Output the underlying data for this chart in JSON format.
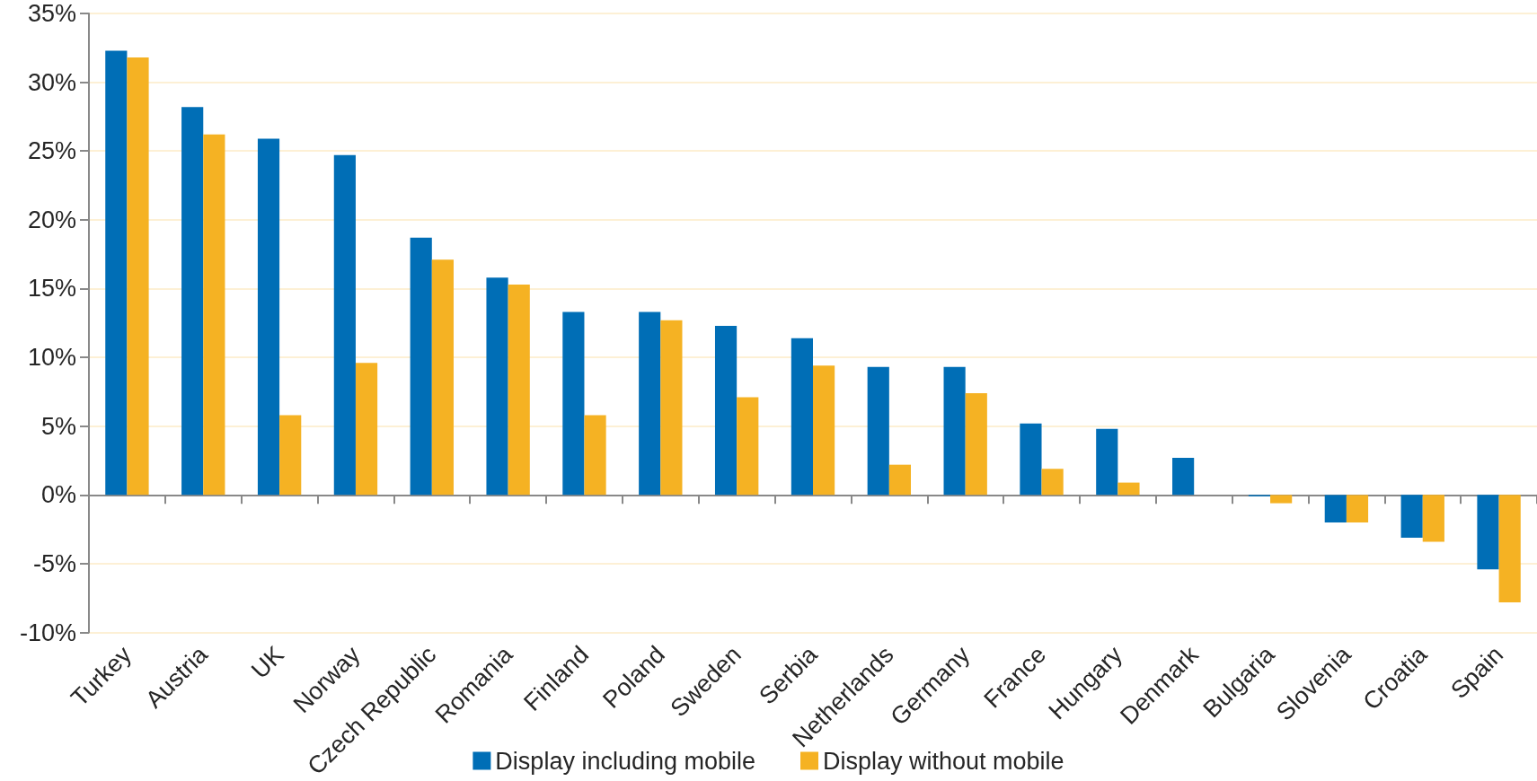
{
  "chart_data": {
    "type": "bar",
    "categories": [
      "Turkey",
      "Austria",
      "UK",
      "Norway",
      "Czech Republic",
      "Romania",
      "Finland",
      "Poland",
      "Sweden",
      "Serbia",
      "Netherlands",
      "Germany",
      "France",
      "Hungary",
      "Denmark",
      "Bulgaria",
      "Slovenia",
      "Croatia",
      "Spain"
    ],
    "series": [
      {
        "name": "Display including mobile",
        "color": "#006eb6",
        "values": [
          32.3,
          28.2,
          25.9,
          24.7,
          18.7,
          15.8,
          13.3,
          13.3,
          12.3,
          11.4,
          9.3,
          9.3,
          5.2,
          4.8,
          2.7,
          -0.1,
          -2.0,
          -3.1,
          -5.4
        ]
      },
      {
        "name": "Display without mobile",
        "color": "#f5b223",
        "values": [
          31.8,
          26.2,
          5.8,
          9.6,
          17.1,
          15.3,
          5.8,
          12.7,
          7.1,
          9.4,
          2.2,
          7.4,
          1.9,
          0.9,
          null,
          -0.6,
          -2.0,
          -3.4,
          -7.8
        ]
      }
    ],
    "ylim": [
      -10,
      35
    ],
    "yticks": [
      {
        "value": -10,
        "label": "-10%"
      },
      {
        "value": -5,
        "label": "-5%"
      },
      {
        "value": 0,
        "label": "0%"
      },
      {
        "value": 5,
        "label": "5%"
      },
      {
        "value": 10,
        "label": "10%"
      },
      {
        "value": 15,
        "label": "15%"
      },
      {
        "value": 20,
        "label": "20%"
      },
      {
        "value": 25,
        "label": "25%"
      },
      {
        "value": 30,
        "label": "30%"
      },
      {
        "value": 35,
        "label": "35%"
      }
    ],
    "grid": "y",
    "legend": "bottom"
  }
}
